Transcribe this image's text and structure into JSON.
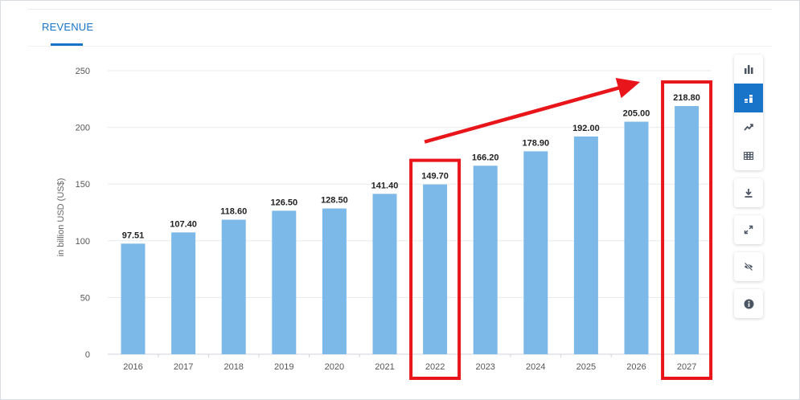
{
  "header": {
    "tab_label": "REVENUE"
  },
  "toolbar": {
    "icons": [
      "bar-chart-icon",
      "bar-chart-alt-icon",
      "trend-line-icon",
      "table-icon",
      "download-icon",
      "expand-icon",
      "hide-icon",
      "info-icon"
    ],
    "active": "bar-chart-alt-icon"
  },
  "annotations": {
    "highlight_color": "#e8161b",
    "highlighted_categories": [
      "2022",
      "2027"
    ],
    "arrow": "trend arrow from 2022 toward 2027"
  },
  "chart_data": {
    "type": "bar",
    "categories": [
      "2016",
      "2017",
      "2018",
      "2019",
      "2020",
      "2021",
      "2022",
      "2023",
      "2024",
      "2025",
      "2026",
      "2027"
    ],
    "values": [
      97.51,
      107.4,
      118.6,
      126.5,
      128.5,
      141.4,
      149.7,
      166.2,
      178.9,
      192.0,
      205.0,
      218.8
    ],
    "value_labels": [
      "97.51",
      "107.40",
      "118.60",
      "126.50",
      "128.50",
      "141.40",
      "149.70",
      "166.20",
      "178.90",
      "192.00",
      "205.00",
      "218.80"
    ],
    "ylabel": "in billion USD (US$)",
    "xlabel": "",
    "ylim": [
      0,
      250
    ],
    "yticks": [
      0,
      50,
      100,
      150,
      200,
      250
    ],
    "grid": true,
    "bar_color": "#7cb9e8"
  }
}
